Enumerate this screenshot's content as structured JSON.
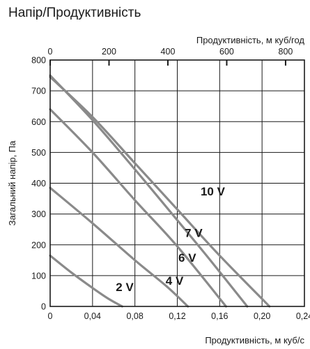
{
  "chart_data": {
    "type": "line",
    "title": "Напір/Продуктивність",
    "xlabel": "Продуктивність, м куб/с",
    "x2label": "Продуктивність, м куб/год",
    "ylabel": "Загальний напір, Па",
    "xlim": [
      0,
      0.24
    ],
    "x2lim": [
      0,
      864
    ],
    "ylim": [
      0,
      800
    ],
    "x_ticks": [
      "0",
      "0,04",
      "0,08",
      "0,12",
      "0,16",
      "0,20",
      "0,24"
    ],
    "x2_ticks": [
      "0",
      "200",
      "400",
      "600",
      "800"
    ],
    "y_ticks": [
      "0",
      "100",
      "200",
      "300",
      "400",
      "500",
      "600",
      "700",
      "800"
    ],
    "grid": true,
    "series": [
      {
        "name": "2 V",
        "x": [
          0,
          0.02,
          0.04,
          0.055,
          0.068
        ],
        "y": [
          165,
          110,
          60,
          25,
          0
        ]
      },
      {
        "name": "4 V",
        "x": [
          0,
          0.04,
          0.08,
          0.11,
          0.13
        ],
        "y": [
          385,
          270,
          150,
          65,
          0
        ]
      },
      {
        "name": "6 V",
        "x": [
          0,
          0.04,
          0.08,
          0.12,
          0.166
        ],
        "y": [
          640,
          500,
          345,
          195,
          0
        ]
      },
      {
        "name": "7 V",
        "x": [
          0,
          0.04,
          0.08,
          0.12,
          0.15,
          0.186
        ],
        "y": [
          750,
          605,
          445,
          280,
          155,
          0
        ]
      },
      {
        "name": "10 V",
        "x": [
          0,
          0.04,
          0.08,
          0.12,
          0.16,
          0.207
        ],
        "y": [
          745,
          615,
          465,
          315,
          165,
          0
        ]
      }
    ],
    "labels": [
      {
        "series": "2 V",
        "text": "2 V",
        "x": 0.062,
        "y": 50
      },
      {
        "series": "4 V",
        "text": "4 V",
        "x": 0.109,
        "y": 70
      },
      {
        "series": "6 V",
        "text": "6 V",
        "x": 0.121,
        "y": 145
      },
      {
        "series": "7 V",
        "text": "7 V",
        "x": 0.127,
        "y": 225
      },
      {
        "series": "10 V",
        "text": "10 V",
        "x": 0.142,
        "y": 360
      }
    ],
    "colors": {
      "curve": "#8a8a8a",
      "grid": "#1a1a1a",
      "text": "#1a1a1a"
    }
  }
}
